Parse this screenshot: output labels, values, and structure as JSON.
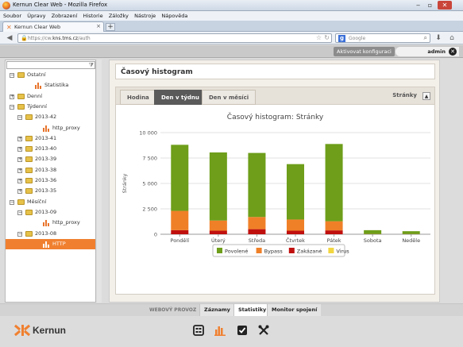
{
  "browser": {
    "window_title": "Kernun Clear Web - Mozilla Firefox",
    "menu": [
      "Soubor",
      "Úpravy",
      "Zobrazení",
      "Historie",
      "Záložky",
      "Nástroje",
      "Nápověda"
    ],
    "tab_label": "Kernun Clear Web",
    "url_prefix": "https://cw.",
    "url_host": "kns.tms.cz",
    "url_path": "/auth",
    "search_placeholder": "Google"
  },
  "appbar": {
    "activate_label": "Aktivovat konfiguraci",
    "user": "admin"
  },
  "tree": [
    {
      "label": "Ostatní",
      "type": "folder",
      "level": 0,
      "toggle": "−"
    },
    {
      "label": "Statistika",
      "type": "chart",
      "level": 1,
      "toggle": ""
    },
    {
      "label": "Denní",
      "type": "folder",
      "level": 0,
      "toggle": "+"
    },
    {
      "label": "Týdenní",
      "type": "folder",
      "level": 0,
      "toggle": "−"
    },
    {
      "label": "2013-42",
      "type": "folder",
      "level": 1,
      "toggle": "−"
    },
    {
      "label": "http_proxy",
      "type": "chart",
      "level": 2,
      "toggle": ""
    },
    {
      "label": "2013-41",
      "type": "folder",
      "level": 1,
      "toggle": "+"
    },
    {
      "label": "2013-40",
      "type": "folder",
      "level": 1,
      "toggle": "+"
    },
    {
      "label": "2013-39",
      "type": "folder",
      "level": 1,
      "toggle": "+"
    },
    {
      "label": "2013-38",
      "type": "folder",
      "level": 1,
      "toggle": "+"
    },
    {
      "label": "2013-36",
      "type": "folder",
      "level": 1,
      "toggle": "+"
    },
    {
      "label": "2013-35",
      "type": "folder",
      "level": 1,
      "toggle": "+"
    },
    {
      "label": "Měsíční",
      "type": "folder",
      "level": 0,
      "toggle": "−"
    },
    {
      "label": "2013-09",
      "type": "folder",
      "level": 1,
      "toggle": "−"
    },
    {
      "label": "http_proxy",
      "type": "chart",
      "level": 2,
      "toggle": ""
    },
    {
      "label": "2013-08",
      "type": "folder",
      "level": 1,
      "toggle": "−"
    },
    {
      "label": "HTTP",
      "type": "chart",
      "level": 2,
      "toggle": "",
      "selected": true
    }
  ],
  "main": {
    "title": "Časový histogram",
    "tabs": [
      "Hodina",
      "Den v týdnu",
      "Den v měsíci"
    ],
    "active_tab": 1,
    "metric_label": "Stránky",
    "metric_toggle": "▲"
  },
  "chart_data": {
    "type": "bar",
    "stacked": true,
    "title": "Časový histogram: Stránky",
    "ylabel": "Stránky",
    "xlabel": "",
    "ylim": [
      0,
      10000
    ],
    "yticks": [
      0,
      2500,
      5000,
      7500,
      10000
    ],
    "ytick_labels": [
      "0",
      "2 500",
      "5 000",
      "7 500",
      "10 000"
    ],
    "categories": [
      "Pondělí",
      "Úterý",
      "Středa",
      "Čtvrtek",
      "Pátek",
      "Sobota",
      "Neděle"
    ],
    "series": [
      {
        "name": "Zakázané",
        "color": "#c0100e",
        "values": [
          400,
          350,
          500,
          350,
          380,
          5,
          5
        ]
      },
      {
        "name": "Bypass",
        "color": "#f08028",
        "values": [
          1900,
          1000,
          1200,
          1100,
          900,
          20,
          15
        ]
      },
      {
        "name": "Povolené",
        "color": "#6e9e1a",
        "values": [
          6500,
          6700,
          6300,
          5450,
          7600,
          375,
          280
        ]
      },
      {
        "name": "Virus",
        "color": "#f2d640",
        "values": [
          0,
          0,
          0,
          0,
          0,
          0,
          0
        ]
      }
    ],
    "legend_order": [
      "Povolené",
      "Bypass",
      "Zakázané",
      "Virus"
    ],
    "legend_position": "bottom",
    "grid": true
  },
  "bottom": {
    "section_label": "WEBOVÝ PROVOZ",
    "tabs": [
      "Záznamy",
      "Statistiky",
      "Monitor spojení"
    ],
    "active_tab": 1,
    "brand": "Kernun"
  }
}
